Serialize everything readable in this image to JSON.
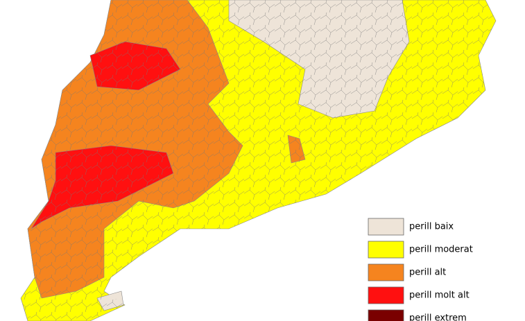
{
  "legend": [
    {
      "label": "perill baix",
      "color": "#eee4d8"
    },
    {
      "label": "perill moderat",
      "color": "#ffff00"
    },
    {
      "label": "perill alt",
      "color": "#f5841f"
    },
    {
      "label": "perill molt alt",
      "color": "#ff1010"
    },
    {
      "label": "perill extrem",
      "color": "#7a0000"
    }
  ]
}
